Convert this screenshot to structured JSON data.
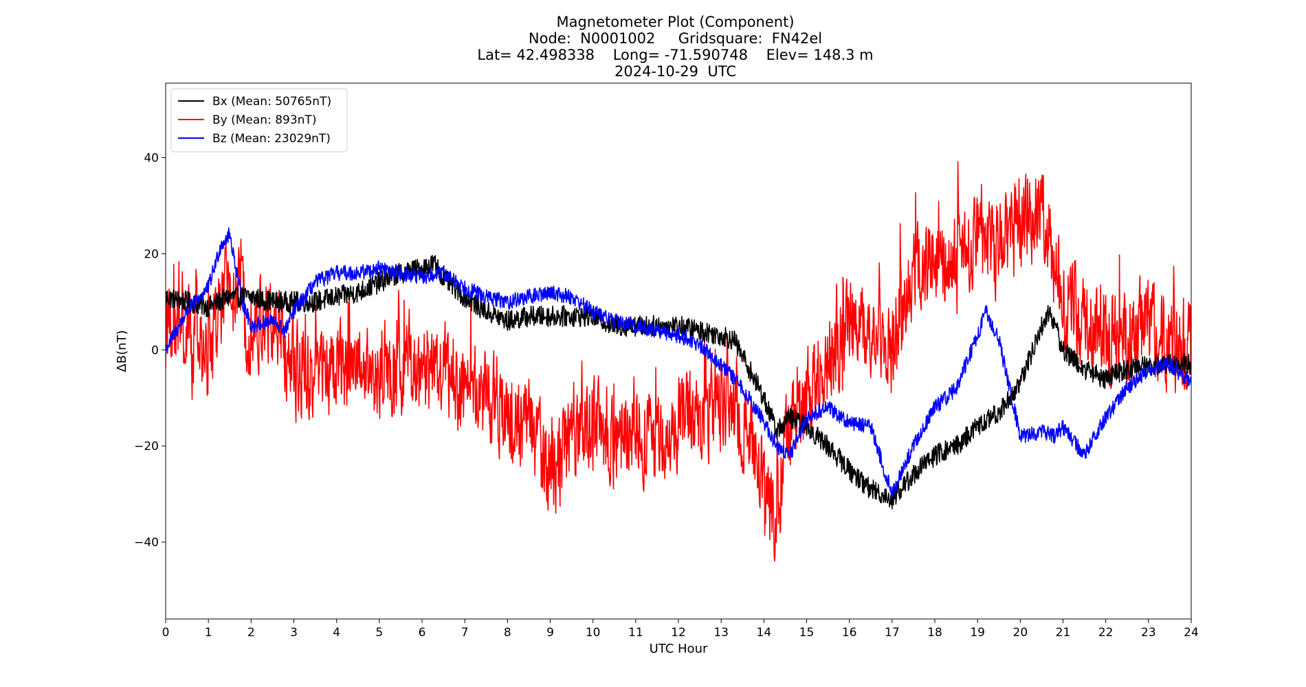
{
  "chart_data": {
    "type": "line",
    "title_lines": [
      "Magnetometer Plot (Component)",
      "Node:  N0001002     Gridsquare:  FN42el",
      "Lat= 42.498338    Long= -71.590748    Elev= 148.3 m",
      "2024-10-29  UTC"
    ],
    "xlabel": "UTC Hour",
    "ylabel": "ΔB(nT)",
    "xlim": [
      0,
      24
    ],
    "ylim": [
      -56,
      55.5
    ],
    "xticks": [
      0,
      1,
      2,
      3,
      4,
      5,
      6,
      7,
      8,
      9,
      10,
      11,
      12,
      13,
      14,
      15,
      16,
      17,
      18,
      19,
      20,
      21,
      22,
      23,
      24
    ],
    "yticks": [
      -40,
      -20,
      0,
      20,
      40
    ],
    "grid": false,
    "legend_position": "upper-left",
    "series": [
      {
        "name": "Bx (Mean: 50765nT)",
        "color": "#000000",
        "noise": 2.2,
        "x": [
          0,
          0.5,
          1,
          1.5,
          2,
          2.5,
          3,
          3.5,
          4,
          4.5,
          5,
          5.5,
          6,
          6.3,
          6.5,
          7,
          7.5,
          8,
          8.5,
          9,
          9.5,
          10,
          10.5,
          11,
          11.5,
          12,
          12.5,
          13,
          13.3,
          13.6,
          14,
          14.3,
          14.6,
          15,
          15.5,
          16,
          16.5,
          17,
          17.3,
          17.6,
          18,
          18.5,
          19,
          19.5,
          20,
          20.5,
          20.7,
          21,
          21.5,
          22,
          22.5,
          23,
          23.5,
          24
        ],
        "y": [
          11,
          10,
          9,
          11,
          11,
          10,
          10,
          10,
          11,
          12,
          14,
          16,
          17,
          18,
          15,
          11,
          8,
          6,
          7,
          7,
          7,
          7,
          5,
          5,
          5,
          5,
          4,
          3,
          2,
          -3,
          -10,
          -17,
          -14,
          -16,
          -20,
          -25,
          -29,
          -31,
          -28,
          -25,
          -22,
          -20,
          -16,
          -13,
          -7,
          5,
          8,
          0,
          -4,
          -6,
          -4,
          -3,
          -3,
          -3
        ]
      },
      {
        "name": "By (Mean: 893nT)",
        "color": "#ff0000",
        "noise": 13,
        "x": [
          0,
          0.5,
          1,
          1.5,
          2,
          2.5,
          3,
          3.5,
          4,
          4.5,
          5,
          5.5,
          6,
          6.5,
          7,
          7.5,
          8,
          8.5,
          9,
          9.5,
          10,
          10.5,
          11,
          11.5,
          12,
          12.5,
          13,
          13.5,
          14,
          14.3,
          14.5,
          15,
          15.5,
          16,
          16.5,
          17,
          17.5,
          18,
          18.5,
          19,
          19.5,
          20,
          20.5,
          21,
          21.5,
          22,
          22.5,
          23,
          23.5,
          24
        ],
        "y": [
          3,
          4,
          -2,
          15,
          5,
          5,
          -4,
          -6,
          -4,
          -2,
          -5,
          -4,
          -7,
          -4,
          -10,
          -8,
          -14,
          -15,
          -25,
          -20,
          -15,
          -20,
          -15,
          -20,
          -15,
          -14,
          -13,
          -15,
          -28,
          -35,
          -20,
          -10,
          -2,
          5,
          3,
          0,
          15,
          18,
          20,
          24,
          20,
          26,
          30,
          10,
          5,
          2,
          2,
          5,
          2,
          0
        ]
      },
      {
        "name": "Bz (Mean: 23029nT)",
        "color": "#0000ff",
        "noise": 1.6,
        "x": [
          0,
          0.5,
          1,
          1.3,
          1.5,
          1.8,
          2,
          2.5,
          2.8,
          3,
          3.5,
          4,
          4.5,
          5,
          5.5,
          6,
          6.5,
          7,
          7.5,
          8,
          8.5,
          9,
          9.5,
          10,
          10.5,
          11,
          11.5,
          12,
          12.5,
          13,
          13.5,
          14,
          14.3,
          14.6,
          15,
          15.5,
          16,
          16.5,
          17,
          17.5,
          18,
          18.5,
          19,
          19.2,
          19.5,
          20,
          20.5,
          20.8,
          21,
          21.5,
          22,
          22.5,
          23,
          23.5,
          24
        ],
        "y": [
          0,
          8,
          13,
          22,
          24,
          10,
          5,
          6,
          4,
          8,
          14,
          16,
          16,
          17,
          16,
          15,
          16,
          13,
          11,
          10,
          11,
          12,
          11,
          8,
          6,
          5,
          4,
          3,
          1,
          -3,
          -8,
          -15,
          -20,
          -22,
          -14,
          -12,
          -15,
          -16,
          -30,
          -20,
          -12,
          -8,
          3,
          8,
          2,
          -18,
          -17,
          -18,
          -16,
          -22,
          -14,
          -8,
          -4,
          -3,
          -7
        ]
      }
    ]
  },
  "colors": {
    "axes": "#000000",
    "background": "#ffffff"
  }
}
